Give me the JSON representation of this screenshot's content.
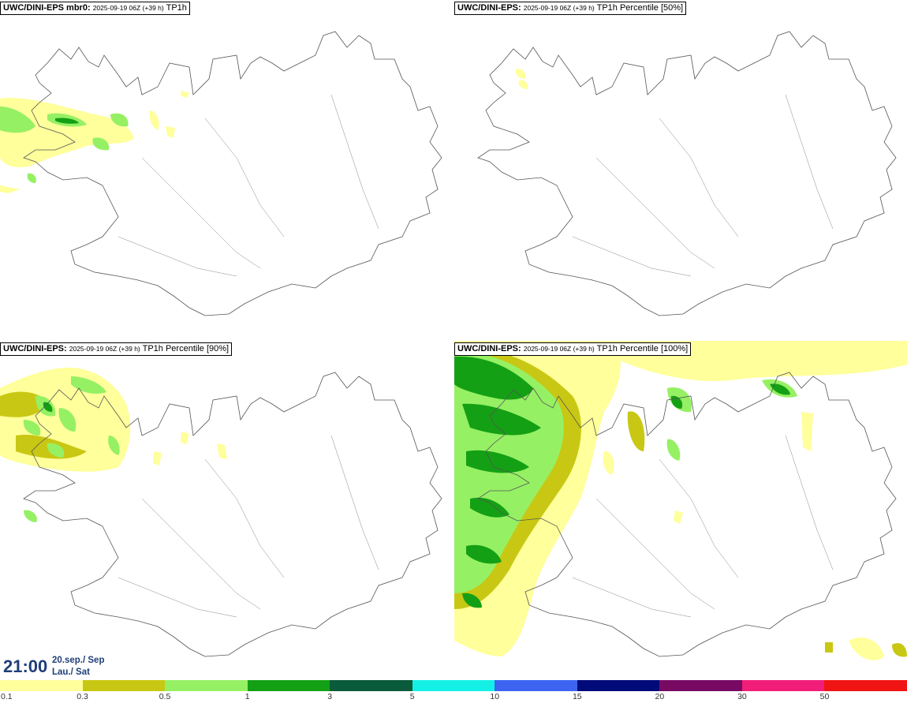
{
  "panels": [
    {
      "model": "UWC/DINI-EPS mbr0",
      "run": "2025-09-19 06Z (+39 h)",
      "field": "TP1h"
    },
    {
      "model": "UWC/DINI-EPS",
      "run": "2025-09-19 06Z (+39 h)",
      "field": "TP1h Percentile [50%]"
    },
    {
      "model": "UWC/DINI-EPS",
      "run": "2025-09-19 06Z (+39 h)",
      "field": "TP1h Percentile [90%]"
    },
    {
      "model": "UWC/DINI-EPS",
      "run": "2025-09-19 06Z (+39 h)",
      "field": "TP1h Percentile [100%]"
    }
  ],
  "valid_time": {
    "time": "21:00",
    "date": "20.sep./ Sep",
    "weekday": "Lau./ Sat"
  },
  "legend": {
    "colors": [
      "#ffff9b",
      "#c8c814",
      "#96f064",
      "#14a014",
      "#0a5a3c",
      "#14f0e6",
      "#3c64f0",
      "#000a78",
      "#780a64",
      "#f01e78",
      "#f01414"
    ],
    "labels": [
      "0.1",
      "0.3",
      "0.5",
      "1",
      "3",
      "5",
      "10",
      "15",
      "20",
      "30",
      "50"
    ]
  }
}
